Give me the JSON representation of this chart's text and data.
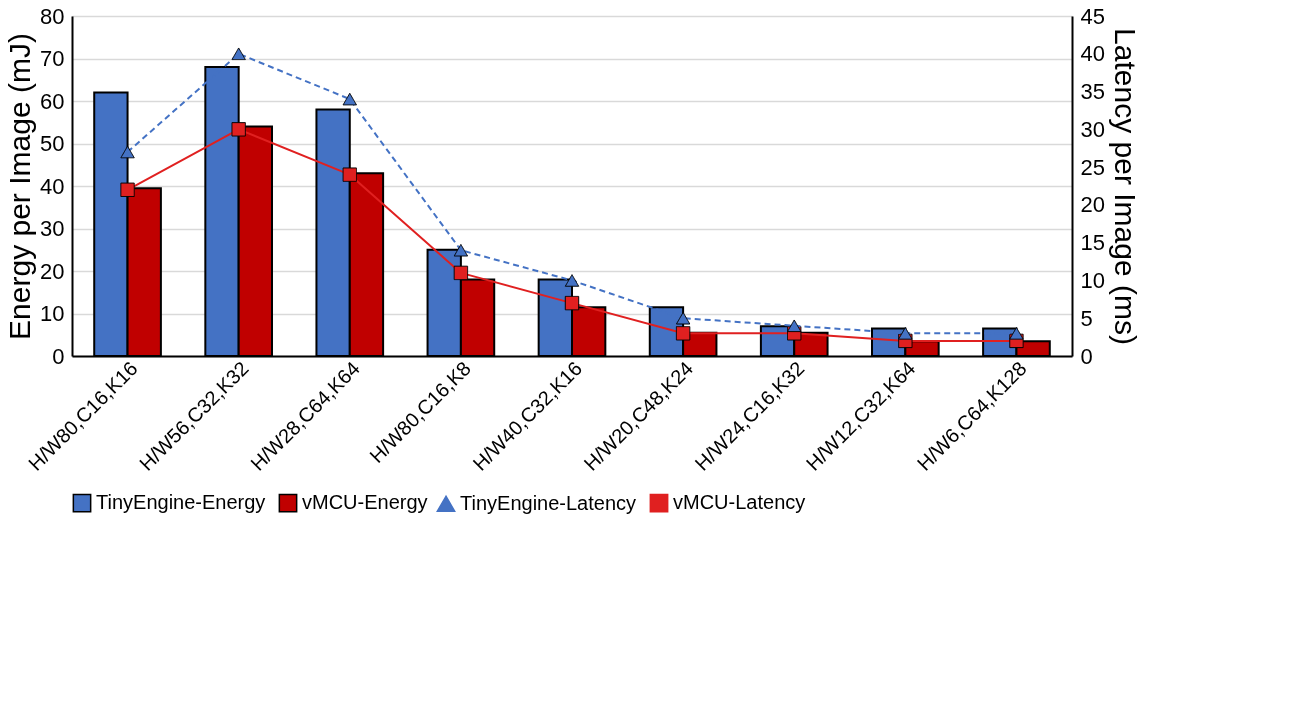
{
  "chart_data": {
    "type": "bar",
    "ylabel": "Energy per Image (mJ)",
    "y2label": "Latency per Image (ms)",
    "categories": [
      "H/W80,C16,K16",
      "H/W56,C32,K32",
      "H/W28,C64,K64",
      "H/W80,C16,K8",
      "H/W40,C32,K16",
      "H/W20,C48,K24",
      "H/W24,C16,K32",
      "H/W12,C32,K64",
      "H/W6,C64,K128"
    ],
    "series": [
      {
        "name": "TinyEngine-Energy",
        "color": "#4472c4",
        "values": [
          62,
          68,
          58,
          25,
          18,
          11.5,
          7,
          6.5,
          6.5
        ]
      },
      {
        "name": "vMCU-Energy",
        "color": "#c00000",
        "values": [
          39.5,
          54,
          43,
          18,
          11.5,
          5.5,
          5.5,
          3.5,
          3.5
        ]
      },
      {
        "name": "TinyEngine-Latency",
        "type": "line",
        "axis": "y2",
        "color": "#4472c4",
        "marker": "triangle",
        "line_style": "dashed",
        "values": [
          27,
          40,
          34,
          14,
          10,
          5,
          4,
          3,
          3
        ]
      },
      {
        "name": "vMCU-Latency",
        "type": "line",
        "axis": "y2",
        "color": "#e02020",
        "marker": "square",
        "line_style": "solid",
        "values": [
          22,
          30,
          24,
          11,
          7,
          3,
          3,
          2,
          2
        ]
      }
    ],
    "ylim": [
      0,
      80
    ],
    "yticks": [
      0,
      10,
      20,
      30,
      40,
      50,
      60,
      70,
      80
    ],
    "y2lim": [
      0,
      45
    ],
    "y2ticks": [
      0,
      5,
      10,
      15,
      20,
      25,
      30,
      35,
      40,
      45
    ],
    "grid": "y",
    "legend": "bottom"
  }
}
